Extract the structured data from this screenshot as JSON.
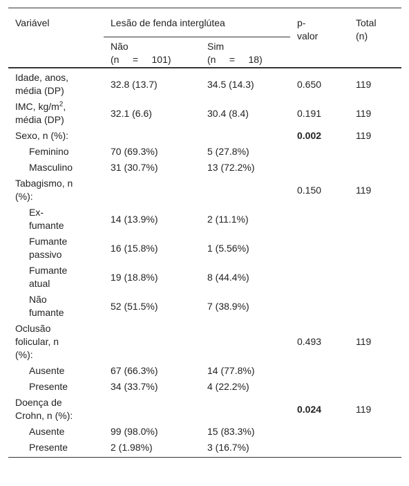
{
  "table": {
    "header": {
      "variable": "Variável",
      "group": "Lesão de fenda interglútea",
      "p": "p-valor",
      "total": "Total (n)",
      "no": "Não",
      "no_n": "(n     =     101)",
      "yes": "Sim",
      "yes_n": "(n     =     18)"
    },
    "rows": [
      {
        "label": "Idade, anos, média (DP)",
        "no": "32.8 (13.7)",
        "yes": "34.5 (14.3)",
        "p": "0.650",
        "total": "119"
      },
      {
        "label": "IMC, kg/m",
        "label_sup": "2",
        "label_after": ", média (DP)",
        "no": "32.1 (6.6)",
        "yes": "30.4 (8.4)",
        "p": "0.191",
        "total": "119"
      },
      {
        "label": "Sexo, n (%):",
        "p": "0.002",
        "p_bold": true,
        "total": "119"
      },
      {
        "label": "Feminino",
        "indent": true,
        "no": "70 (69.3%)",
        "yes": "5 (27.8%)"
      },
      {
        "label": "Masculino",
        "indent": true,
        "no": "31 (30.7%)",
        "yes": "13 (72.2%)"
      },
      {
        "label": "Tabagismo, n (%):",
        "p": "0.150",
        "total": "119"
      },
      {
        "label": "Ex-fumante",
        "indent": true,
        "no": "14 (13.9%)",
        "yes": "2 (11.1%)"
      },
      {
        "label": "Fumante passivo",
        "indent": true,
        "no": "16 (15.8%)",
        "yes": "1 (5.56%)"
      },
      {
        "label": "Fumante atual",
        "indent": true,
        "no": "19 (18.8%)",
        "yes": "8 (44.4%)"
      },
      {
        "label": "Não fumante",
        "indent": true,
        "no": "52 (51.5%)",
        "yes": "7 (38.9%)"
      },
      {
        "label": "Oclusão folicular, n (%):",
        "p": "0.493",
        "total": "119"
      },
      {
        "label": "Ausente",
        "indent": true,
        "no": "67 (66.3%)",
        "yes": "14 (77.8%)"
      },
      {
        "label": "Presente",
        "indent": true,
        "no": "34 (33.7%)",
        "yes": "4 (22.2%)"
      },
      {
        "label": "Doença de Crohn, n (%):",
        "p": "0.024",
        "p_bold": true,
        "total": "119"
      },
      {
        "label": "Ausente",
        "indent": true,
        "no": "99 (98.0%)",
        "yes": "15 (83.3%)"
      },
      {
        "label": "Presente",
        "indent": true,
        "no": "2 (1.98%)",
        "yes": "3 (16.7%)"
      }
    ]
  }
}
